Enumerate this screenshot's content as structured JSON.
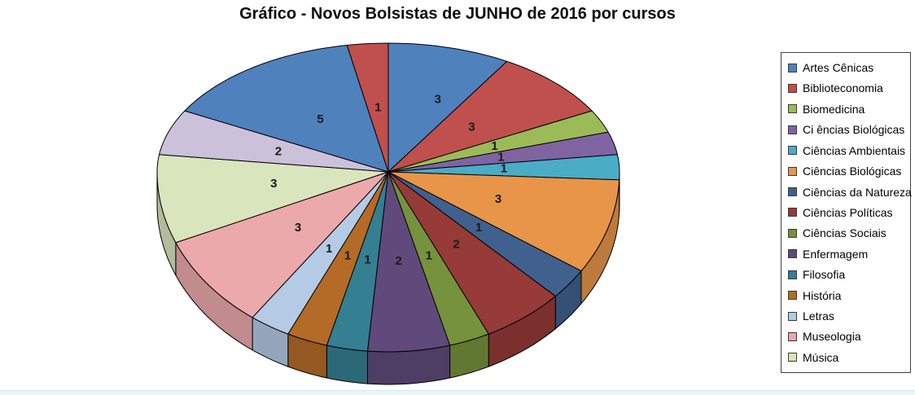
{
  "title": "Gráfico - Novos Bolsistas de JUNHO de 2016 por cursos",
  "chart_data": {
    "type": "pie",
    "style": "3d",
    "title": "Gráfico - Novos Bolsistas de JUNHO de 2016 por cursos",
    "legend_position": "right",
    "legend_entries_visible": 15,
    "data_labels": "value",
    "total": 35,
    "slices": [
      {
        "label": "Artes Cênicas",
        "value": 3,
        "color": "#4F81BD"
      },
      {
        "label": "Biblioteconomia",
        "value": 3,
        "color": "#C0504D"
      },
      {
        "label": "Biomedicina",
        "value": 1,
        "color": "#9BBB59"
      },
      {
        "label": "Ci ências Biológicas",
        "value": 1,
        "color": "#8064A2"
      },
      {
        "label": "Ciências Ambientais",
        "value": 1,
        "color": "#4BACC6"
      },
      {
        "label": "Ciências Biológicas",
        "value": 3,
        "color": "#E8954A"
      },
      {
        "label": "Ciências da Natureza",
        "value": 1,
        "color": "#40618E"
      },
      {
        "label": "Ciências Políticas",
        "value": 2,
        "color": "#963B38"
      },
      {
        "label": "Ciências Sociais",
        "value": 1,
        "color": "#76923D"
      },
      {
        "label": "Enfermagem",
        "value": 2,
        "color": "#5F4A7B"
      },
      {
        "label": "Filosofia",
        "value": 1,
        "color": "#347F92"
      },
      {
        "label": "História",
        "value": 1,
        "color": "#B46B27"
      },
      {
        "label": "Letras",
        "value": 1,
        "color": "#B5CBE5"
      },
      {
        "label": "Museologia",
        "value": 3,
        "color": "#ECA9AC"
      },
      {
        "label": "Música",
        "value": 3,
        "color": "#D9E5BD"
      },
      {
        "label": null,
        "value": 2,
        "color": "#CCC1DA",
        "legend_visible": false
      },
      {
        "label": null,
        "value": 5,
        "color": "#4F81BD",
        "legend_visible": false
      },
      {
        "label": null,
        "value": 1,
        "color": "#C0504D",
        "legend_visible": false
      }
    ]
  }
}
